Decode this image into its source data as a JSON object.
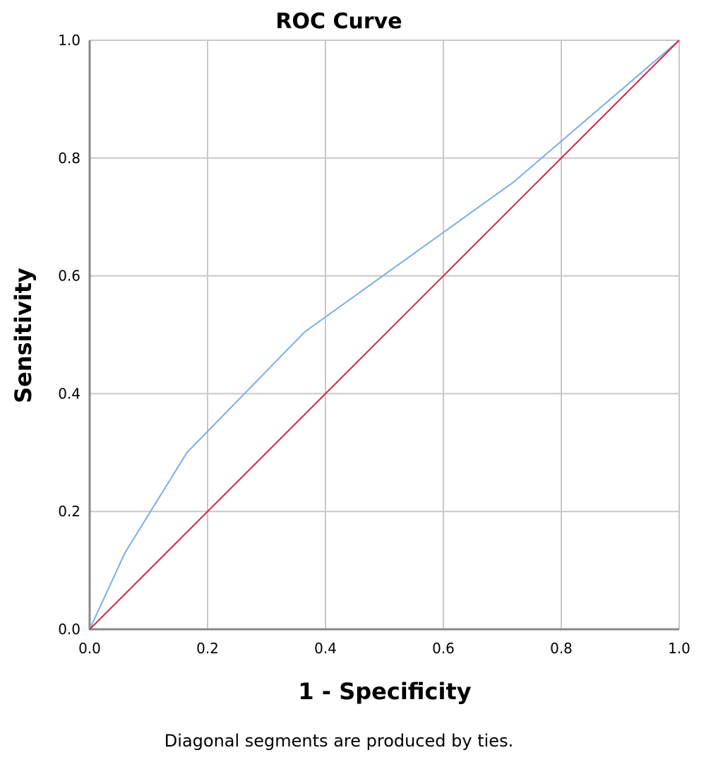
{
  "chart_data": {
    "type": "line",
    "title": "ROC Curve",
    "xlabel": "1 - Specificity",
    "ylabel": "Sensitivity",
    "xlim": [
      0.0,
      1.0
    ],
    "ylim": [
      0.0,
      1.0
    ],
    "grid": true,
    "x_ticks": [
      "0.0",
      "0.2",
      "0.4",
      "0.6",
      "0.8",
      "1.0"
    ],
    "y_ticks": [
      "0.0",
      "0.2",
      "0.4",
      "0.6",
      "0.8",
      "1.0"
    ],
    "series": [
      {
        "color": "#7aaee8",
        "x": [
          0.0,
          0.06,
          0.165,
          0.365,
          0.72,
          1.0
        ],
        "y": [
          0.0,
          0.13,
          0.3,
          0.505,
          0.76,
          1.0
        ]
      },
      {
        "color": "#d8234a",
        "x": [
          0.0,
          1.0
        ],
        "y": [
          0.0,
          1.0
        ]
      }
    ],
    "footnote": "Diagonal segments are produced by ties."
  }
}
